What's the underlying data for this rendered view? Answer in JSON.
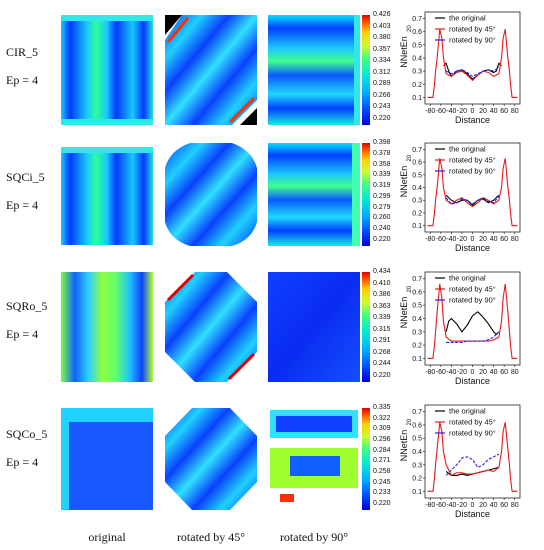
{
  "rows": [
    {
      "name": "CIR_5",
      "ep": "Ep = 4",
      "colorbar": [
        "0.426",
        "0.403",
        "0.380",
        "0.357",
        "0.334",
        "0.312",
        "0.289",
        "0.266",
        "0.243",
        "0.220"
      ]
    },
    {
      "name": "SQCi_5",
      "ep": "Ep = 4",
      "colorbar": [
        "0.398",
        "0.378",
        "0.358",
        "0.339",
        "0.319",
        "0.299",
        "0.279",
        "0.260",
        "0.240",
        "0.220"
      ]
    },
    {
      "name": "SQRo_5",
      "ep": "Ep = 4",
      "colorbar": [
        "0.434",
        "0.410",
        "0.386",
        "0.363",
        "0.339",
        "0.315",
        "0.291",
        "0.268",
        "0.244",
        "0.220"
      ]
    },
    {
      "name": "SQCo_5",
      "ep": "Ep = 4",
      "colorbar": [
        "0.335",
        "0.322",
        "0.309",
        "0.296",
        "0.284",
        "0.271",
        "0.258",
        "0.245",
        "0.233",
        "0.220"
      ]
    }
  ],
  "bottom_labels": [
    "original",
    "rotated by 45°",
    "rotated by 90°"
  ],
  "colors": {
    "original": "#000000",
    "rot45": "#e41a1c",
    "rot90": "#2222dd"
  },
  "chart_data": [
    {
      "type": "line",
      "ylabel": "NNetEn",
      "ylabel_sub": "20",
      "xlabel": "Distance",
      "legend": [
        "the original",
        "rotated by 45°",
        "rotated by 90°"
      ],
      "xlim": [
        -90,
        90
      ],
      "ylim": [
        0.05,
        0.75
      ],
      "xticks": [
        "-80",
        "-60",
        "-40",
        "-20",
        "0",
        "20",
        "40",
        "60",
        "80"
      ],
      "yticks": [
        "0.1",
        "0.2",
        "0.3",
        "0.4",
        "0.5",
        "0.6",
        "0.7"
      ],
      "series": [
        {
          "name": "the original",
          "x": [
            -55,
            -50,
            -45,
            -40,
            -30,
            -20,
            -10,
            0,
            10,
            20,
            30,
            40,
            45,
            50,
            55
          ],
          "y": [
            0.34,
            0.36,
            0.3,
            0.26,
            0.3,
            0.31,
            0.28,
            0.24,
            0.27,
            0.3,
            0.31,
            0.29,
            0.3,
            0.36,
            0.34
          ]
        },
        {
          "name": "rotated by 45°",
          "x": [
            -85,
            -80,
            -75,
            -72,
            -70,
            -67,
            -62,
            -58,
            -55,
            -50,
            -40,
            -30,
            -20,
            -10,
            0,
            10,
            20,
            30,
            40,
            50,
            55,
            58,
            62,
            67,
            70,
            72,
            75,
            80,
            85
          ],
          "y": [
            0.1,
            0.1,
            0.1,
            0.2,
            0.3,
            0.4,
            0.62,
            0.55,
            0.4,
            0.28,
            0.26,
            0.29,
            0.3,
            0.27,
            0.23,
            0.27,
            0.3,
            0.29,
            0.26,
            0.28,
            0.4,
            0.55,
            0.62,
            0.4,
            0.3,
            0.2,
            0.1,
            0.1,
            0.1
          ]
        },
        {
          "name": "rotated by 90°",
          "x": [
            -50,
            -40,
            -30,
            -20,
            -10,
            0,
            10,
            20,
            30,
            40,
            50
          ],
          "y": [
            0.3,
            0.28,
            0.3,
            0.31,
            0.29,
            0.26,
            0.28,
            0.3,
            0.31,
            0.3,
            0.33
          ]
        }
      ]
    },
    {
      "type": "line",
      "ylabel": "NNetEn",
      "ylabel_sub": "20",
      "xlabel": "Distance",
      "legend": [
        "the original",
        "rotated by 45°",
        "rotated by 90°"
      ],
      "xlim": [
        -90,
        90
      ],
      "ylim": [
        0.05,
        0.75
      ],
      "xticks": [
        "-80",
        "-60",
        "-40",
        "-20",
        "0",
        "20",
        "40",
        "60",
        "80"
      ],
      "yticks": [
        "0.1",
        "0.2",
        "0.3",
        "0.4",
        "0.5",
        "0.6",
        "0.7"
      ],
      "series": [
        {
          "name": "the original",
          "x": [
            -50,
            -40,
            -30,
            -20,
            -10,
            0,
            10,
            20,
            30,
            40,
            50
          ],
          "y": [
            0.34,
            0.3,
            0.28,
            0.3,
            0.3,
            0.26,
            0.3,
            0.31,
            0.28,
            0.3,
            0.34
          ]
        },
        {
          "name": "rotated by 45°",
          "x": [
            -85,
            -80,
            -75,
            -72,
            -70,
            -67,
            -62,
            -58,
            -55,
            -50,
            -40,
            -30,
            -20,
            -10,
            0,
            10,
            20,
            30,
            40,
            50,
            55,
            58,
            62,
            67,
            70,
            72,
            75,
            80,
            85
          ],
          "y": [
            0.1,
            0.1,
            0.1,
            0.2,
            0.3,
            0.4,
            0.63,
            0.55,
            0.4,
            0.3,
            0.27,
            0.3,
            0.32,
            0.28,
            0.25,
            0.28,
            0.32,
            0.3,
            0.27,
            0.3,
            0.4,
            0.55,
            0.63,
            0.4,
            0.3,
            0.2,
            0.1,
            0.1,
            0.1
          ]
        },
        {
          "name": "rotated by 90°",
          "x": [
            -50,
            -40,
            -30,
            -20,
            -10,
            0,
            10,
            20,
            30,
            40,
            50
          ],
          "y": [
            0.32,
            0.27,
            0.28,
            0.31,
            0.3,
            0.27,
            0.3,
            0.32,
            0.29,
            0.28,
            0.33
          ]
        }
      ]
    },
    {
      "type": "line",
      "ylabel": "NNetEn",
      "ylabel_sub": "20",
      "xlabel": "Distance",
      "legend": [
        "the original",
        "rotated by 45°",
        "rotated by 90°"
      ],
      "xlim": [
        -90,
        90
      ],
      "ylim": [
        0.05,
        0.75
      ],
      "xticks": [
        "-80",
        "-60",
        "-40",
        "-20",
        "0",
        "20",
        "40",
        "60",
        "80"
      ],
      "yticks": [
        "0.1",
        "0.2",
        "0.3",
        "0.4",
        "0.5",
        "0.6",
        "0.7"
      ],
      "series": [
        {
          "name": "the original",
          "x": [
            -50,
            -45,
            -40,
            -30,
            -20,
            -10,
            0,
            10,
            20,
            30,
            40,
            45,
            50
          ],
          "y": [
            0.3,
            0.38,
            0.4,
            0.36,
            0.3,
            0.35,
            0.42,
            0.45,
            0.41,
            0.36,
            0.3,
            0.28,
            0.3
          ]
        },
        {
          "name": "rotated by 45°",
          "x": [
            -85,
            -80,
            -75,
            -72,
            -70,
            -67,
            -62,
            -58,
            -55,
            -50,
            -40,
            -30,
            -20,
            -10,
            0,
            10,
            20,
            30,
            40,
            50,
            55,
            58,
            62,
            67,
            70,
            72,
            75,
            80,
            85
          ],
          "y": [
            0.1,
            0.1,
            0.1,
            0.2,
            0.3,
            0.45,
            0.66,
            0.55,
            0.38,
            0.26,
            0.23,
            0.23,
            0.23,
            0.23,
            0.23,
            0.23,
            0.23,
            0.23,
            0.24,
            0.26,
            0.38,
            0.55,
            0.66,
            0.45,
            0.3,
            0.2,
            0.1,
            0.1,
            0.1
          ]
        },
        {
          "name": "rotated by 90°",
          "x": [
            -50,
            -40,
            -30,
            -20,
            -10,
            0,
            10,
            20,
            30,
            40,
            50
          ],
          "y": [
            0.22,
            0.22,
            0.22,
            0.22,
            0.23,
            0.23,
            0.23,
            0.23,
            0.24,
            0.26,
            0.3
          ]
        }
      ]
    },
    {
      "type": "line",
      "ylabel": "NNetEn",
      "ylabel_sub": "20",
      "xlabel": "Distance",
      "legend": [
        "the original",
        "rotated by 45°",
        "rotated by 90°"
      ],
      "xlim": [
        -90,
        90
      ],
      "ylim": [
        0.05,
        0.75
      ],
      "xticks": [
        "-80",
        "-60",
        "-40",
        "-20",
        "0",
        "20",
        "40",
        "60",
        "80"
      ],
      "yticks": [
        "0.1",
        "0.2",
        "0.3",
        "0.4",
        "0.5",
        "0.6",
        "0.7"
      ],
      "series": [
        {
          "name": "the original",
          "x": [
            -50,
            -40,
            -30,
            -20,
            -10,
            0,
            10,
            20,
            30,
            40,
            50
          ],
          "y": [
            0.25,
            0.22,
            0.22,
            0.23,
            0.22,
            0.23,
            0.24,
            0.25,
            0.26,
            0.27,
            0.28
          ]
        },
        {
          "name": "rotated by 45°",
          "x": [
            -85,
            -80,
            -75,
            -72,
            -70,
            -67,
            -62,
            -58,
            -55,
            -50,
            -40,
            -30,
            -20,
            -10,
            0,
            10,
            20,
            30,
            40,
            50,
            55,
            58,
            62,
            67,
            70,
            72,
            75,
            80,
            85
          ],
          "y": [
            0.1,
            0.1,
            0.1,
            0.2,
            0.3,
            0.42,
            0.62,
            0.55,
            0.4,
            0.3,
            0.22,
            0.24,
            0.24,
            0.23,
            0.23,
            0.24,
            0.25,
            0.26,
            0.25,
            0.28,
            0.4,
            0.55,
            0.62,
            0.42,
            0.3,
            0.2,
            0.1,
            0.1,
            0.1
          ]
        },
        {
          "name": "rotated by 90°",
          "x": [
            -50,
            -40,
            -30,
            -20,
            -10,
            0,
            10,
            20,
            30,
            40,
            50
          ],
          "y": [
            0.22,
            0.26,
            0.3,
            0.35,
            0.36,
            0.34,
            0.28,
            0.3,
            0.34,
            0.36,
            0.38
          ]
        }
      ]
    }
  ]
}
